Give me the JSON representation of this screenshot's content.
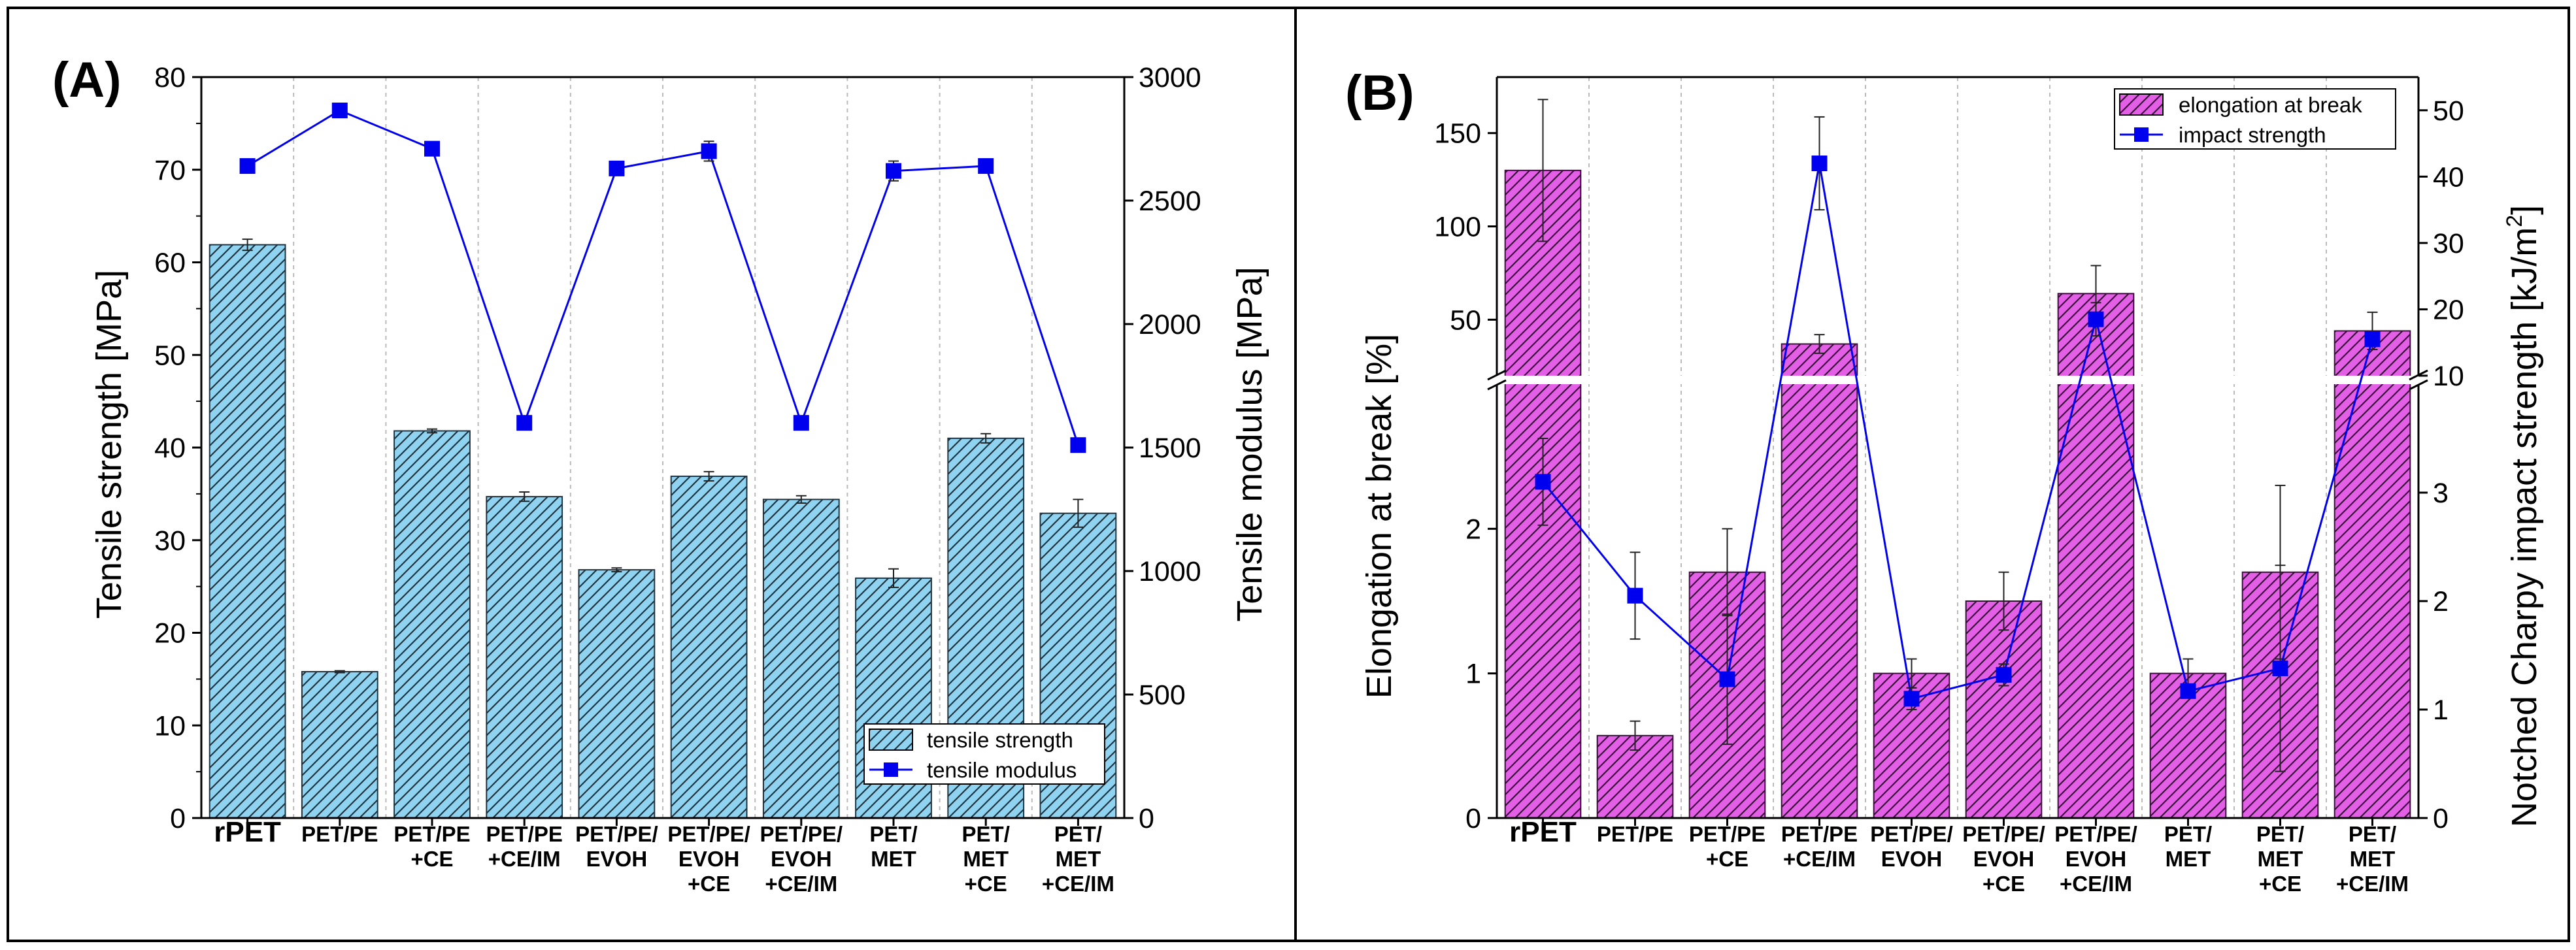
{
  "chart_data": [
    {
      "panel_label": "(A)",
      "type": "bar",
      "categories": [
        [
          "rPET"
        ],
        [
          "PET/PE"
        ],
        [
          "PET/PE",
          "+CE"
        ],
        [
          "PET/PE",
          "+CE/IM"
        ],
        [
          "PET/PE/",
          "EVOH"
        ],
        [
          "PET/PE/",
          "EVOH",
          "+CE"
        ],
        [
          "PET/PE/",
          "EVOH",
          "+CE/IM"
        ],
        [
          "PET/",
          "MET"
        ],
        [
          "PET/",
          "MET",
          "+CE"
        ],
        [
          "PET/",
          "MET",
          "+CE/IM"
        ]
      ],
      "ylabel": "Tensile strength [MPa]",
      "y2label": "Tensile modulus [MPa]",
      "ylim": [
        0,
        80
      ],
      "y2lim": [
        0,
        3000
      ],
      "yticks": [
        0,
        10,
        20,
        30,
        40,
        50,
        60,
        70,
        80
      ],
      "y2ticks": [
        0,
        500,
        1000,
        1500,
        2000,
        2500,
        3000
      ],
      "legend_position": "bottom-right",
      "bar_color": "#8fd3f0",
      "line_color": "#0000ee",
      "series": [
        {
          "name": "tensile strength",
          "kind": "bar",
          "axis": "left",
          "values": [
            61.9,
            15.8,
            41.8,
            34.7,
            26.8,
            36.9,
            34.4,
            25.9,
            41.0,
            32.9
          ],
          "errors": [
            0.6,
            0.1,
            0.2,
            0.5,
            0.2,
            0.5,
            0.4,
            1.0,
            0.5,
            1.5
          ]
        },
        {
          "name": "tensile modulus",
          "kind": "line",
          "axis": "right",
          "values": [
            2640,
            2865,
            2710,
            1600,
            2630,
            2700,
            1600,
            2620,
            2640,
            1510
          ],
          "errors": [
            0,
            0,
            0,
            0,
            0,
            40,
            0,
            40,
            0,
            0
          ]
        }
      ]
    },
    {
      "panel_label": "(B)",
      "type": "bar",
      "categories": [
        [
          "rPET"
        ],
        [
          "PET/PE"
        ],
        [
          "PET/PE",
          "+CE"
        ],
        [
          "PET/PE",
          "+CE/IM"
        ],
        [
          "PET/PE/",
          "EVOH"
        ],
        [
          "PET/PE/",
          "EVOH",
          "+CE"
        ],
        [
          "PET/PE/",
          "EVOH",
          "+CE/IM"
        ],
        [
          "PET/",
          "MET"
        ],
        [
          "PET/",
          "MET",
          "+CE"
        ],
        [
          "PET/",
          "MET",
          "+CE/IM"
        ]
      ],
      "ylabel": "Elongation at break [%]",
      "y2label": "Notched Charpy impact strength [kJ/m",
      "y2label_superscript": "2",
      "y2label_end": "]",
      "broken_axis": true,
      "ylim_lower": [
        0,
        3
      ],
      "ylim_upper": [
        20,
        180
      ],
      "yticks_lower": [
        0,
        1,
        2
      ],
      "yticks_upper": [
        50,
        100,
        150
      ],
      "y2lim_lower": [
        0,
        4
      ],
      "y2lim_upper": [
        10,
        55
      ],
      "y2ticks_lower": [
        0,
        1,
        2,
        3
      ],
      "y2ticks_upper": [
        10,
        20,
        30,
        40,
        50
      ],
      "legend_position": "top-right",
      "bar_color": "#e35fe6",
      "line_color": "#0000ee",
      "series": [
        {
          "name": "elongation at break",
          "kind": "bar",
          "axis": "left",
          "values": [
            130,
            0.57,
            1.7,
            37,
            1.0,
            1.5,
            64,
            1.0,
            1.7,
            44
          ],
          "errors": [
            38,
            0.1,
            0.3,
            5,
            0.1,
            0.2,
            15,
            0.1,
            0.6,
            10
          ]
        },
        {
          "name": "impact strength",
          "kind": "line",
          "axis": "right",
          "values": [
            3.1,
            2.05,
            1.28,
            42,
            1.1,
            1.32,
            18.5,
            1.17,
            1.38,
            15.5
          ],
          "errors": [
            0.4,
            0.4,
            0.6,
            7,
            0.1,
            0.1,
            2.5,
            0.05,
            0.95,
            1.0
          ]
        }
      ]
    }
  ]
}
